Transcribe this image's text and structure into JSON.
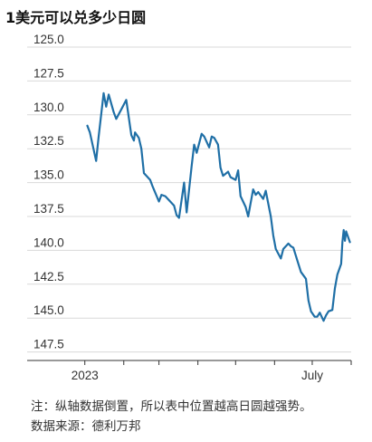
{
  "chart_data": {
    "type": "line",
    "title": "1美元可以兑多少日圆",
    "y_axis": {
      "reversed": true,
      "range": [
        124.5,
        149.0
      ],
      "ticks": [
        "125.0",
        "127.5",
        "130.0",
        "132.5",
        "135.0",
        "137.5",
        "140.0",
        "142.5",
        "145.0",
        "147.5"
      ],
      "gridlines": true
    },
    "x_axis": {
      "tick_labels": [
        "2023",
        "July"
      ],
      "range": [
        "2022-12-25",
        "2023-08-01"
      ]
    },
    "series": [
      {
        "color": "#1f6fa6",
        "points": [
          [
            "2023-01-03",
            130.8
          ],
          [
            "2023-01-05",
            131.3
          ],
          [
            "2023-01-10",
            133.4
          ],
          [
            "2023-01-12",
            131.6
          ],
          [
            "2023-01-16",
            128.4
          ],
          [
            "2023-01-18",
            129.4
          ],
          [
            "2023-01-20",
            128.5
          ],
          [
            "2023-01-24",
            129.8
          ],
          [
            "2023-01-26",
            130.3
          ],
          [
            "2023-01-30",
            129.6
          ],
          [
            "2023-02-03",
            128.9
          ],
          [
            "2023-02-07",
            131.5
          ],
          [
            "2023-02-09",
            131.9
          ],
          [
            "2023-02-10",
            131.3
          ],
          [
            "2023-02-13",
            131.7
          ],
          [
            "2023-02-15",
            132.5
          ],
          [
            "2023-02-17",
            134.3
          ],
          [
            "2023-02-22",
            134.8
          ],
          [
            "2023-02-24",
            135.3
          ],
          [
            "2023-03-01",
            136.4
          ],
          [
            "2023-03-03",
            135.9
          ],
          [
            "2023-03-06",
            136.0
          ],
          [
            "2023-03-09",
            136.3
          ],
          [
            "2023-03-13",
            136.7
          ],
          [
            "2023-03-15",
            137.4
          ],
          [
            "2023-03-17",
            137.6
          ],
          [
            "2023-03-21",
            135.0
          ],
          [
            "2023-03-23",
            137.2
          ],
          [
            "2023-03-27",
            133.8
          ],
          [
            "2023-03-29",
            132.2
          ],
          [
            "2023-03-31",
            132.8
          ],
          [
            "2023-04-04",
            131.4
          ],
          [
            "2023-04-06",
            131.6
          ],
          [
            "2023-04-10",
            132.4
          ],
          [
            "2023-04-12",
            131.6
          ],
          [
            "2023-04-14",
            131.7
          ],
          [
            "2023-04-17",
            132.2
          ],
          [
            "2023-04-19",
            133.9
          ],
          [
            "2023-04-21",
            134.5
          ],
          [
            "2023-04-25",
            134.2
          ],
          [
            "2023-04-27",
            134.6
          ],
          [
            "2023-05-01",
            134.8
          ],
          [
            "2023-05-03",
            134.1
          ],
          [
            "2023-05-05",
            136.0
          ],
          [
            "2023-05-09",
            136.8
          ],
          [
            "2023-05-11",
            137.5
          ],
          [
            "2023-05-15",
            135.5
          ],
          [
            "2023-05-17",
            135.9
          ],
          [
            "2023-05-19",
            135.7
          ],
          [
            "2023-05-23",
            136.2
          ],
          [
            "2023-05-25",
            135.6
          ],
          [
            "2023-05-29",
            137.5
          ],
          [
            "2023-05-31",
            138.9
          ],
          [
            "2023-06-02",
            139.9
          ],
          [
            "2023-06-06",
            140.6
          ],
          [
            "2023-06-08",
            139.9
          ],
          [
            "2023-06-12",
            139.5
          ],
          [
            "2023-06-14",
            139.7
          ],
          [
            "2023-06-16",
            139.8
          ],
          [
            "2023-06-20",
            141.0
          ],
          [
            "2023-06-22",
            141.6
          ],
          [
            "2023-06-26",
            142.1
          ],
          [
            "2023-06-28",
            143.7
          ],
          [
            "2023-06-30",
            144.5
          ],
          [
            "2023-07-03",
            144.9
          ],
          [
            "2023-07-05",
            144.9
          ],
          [
            "2023-07-07",
            144.6
          ],
          [
            "2023-07-10",
            145.2
          ],
          [
            "2023-07-12",
            144.8
          ],
          [
            "2023-07-14",
            144.5
          ],
          [
            "2023-07-17",
            144.4
          ],
          [
            "2023-07-19",
            142.8
          ],
          [
            "2023-07-21",
            141.8
          ],
          [
            "2023-07-24",
            141.0
          ],
          [
            "2023-07-25",
            139.4
          ],
          [
            "2023-07-26",
            138.5
          ],
          [
            "2023-07-27",
            139.3
          ],
          [
            "2023-07-28",
            138.6
          ],
          [
            "2023-07-31",
            139.4
          ]
        ]
      }
    ]
  },
  "notes": {
    "note": "注：纵轴数据倒置，所以表中位置越高日圆越强势。",
    "source": "数据来源：德利万邦"
  }
}
